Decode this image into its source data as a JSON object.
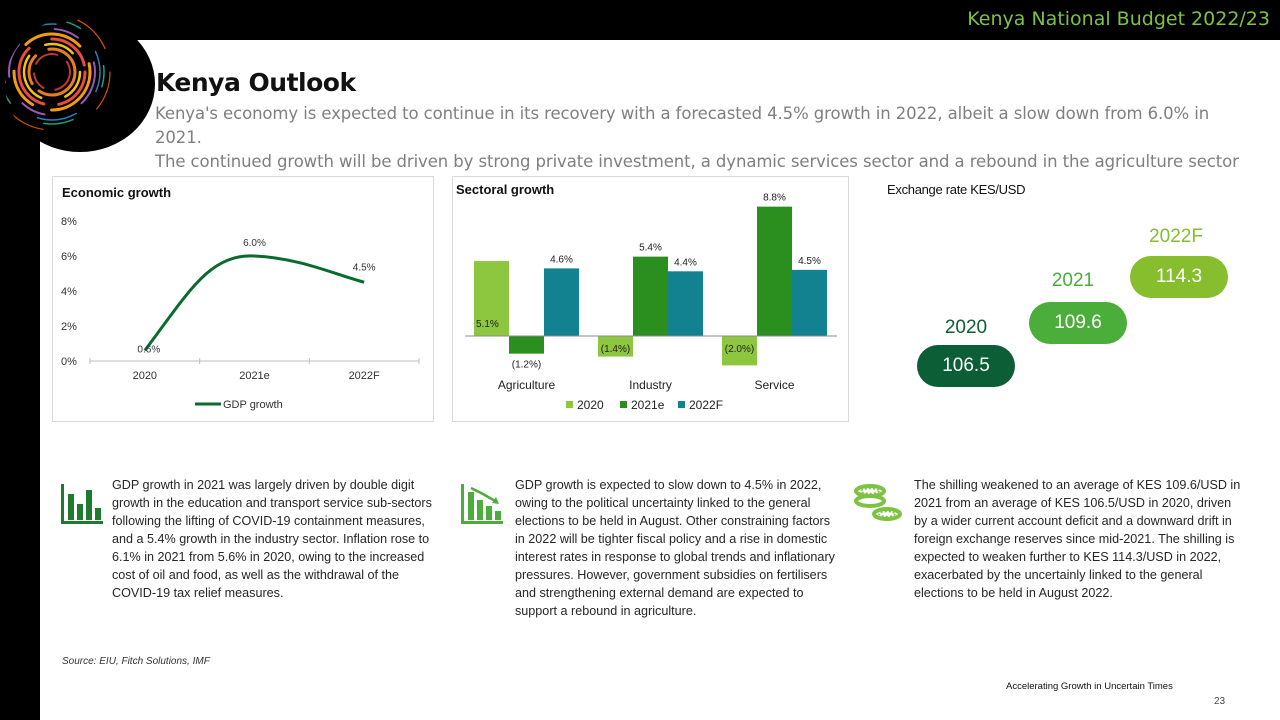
{
  "header": {
    "doc_title": "Kenya National Budget 2022/23"
  },
  "page": {
    "title": "Kenya Outlook",
    "intro_line1": "Kenya's economy is expected to continue in its recovery with a forecasted 4.5% growth in 2022, albeit a slow down from 6.0% in 2021.",
    "intro_line2": "The continued growth will be driven by strong private investment, a dynamic services sector and a rebound in the agriculture sector"
  },
  "chart_data": [
    {
      "type": "line",
      "title": "Economic growth",
      "categories": [
        "2020",
        "2021e",
        "2022F"
      ],
      "series": [
        {
          "name": "GDP growth",
          "values": [
            0.6,
            6.0,
            4.5
          ],
          "labels": [
            "0.6%",
            "6.0%",
            "4.5%"
          ],
          "color": "#0b6b2e"
        }
      ],
      "yticks": [
        "0%",
        "2%",
        "4%",
        "6%",
        "8%"
      ],
      "ylim": [
        0,
        8
      ],
      "legend": "bottom"
    },
    {
      "type": "bar",
      "title": "Sectoral growth",
      "categories": [
        "Agriculture",
        "Industry",
        "Service"
      ],
      "series": [
        {
          "name": "2020",
          "values": [
            5.1,
            -1.4,
            -2.0
          ],
          "labels": [
            "5.1%",
            "(1.4%)",
            "(2.0%)"
          ],
          "color": "#8dc63f"
        },
        {
          "name": "2021e",
          "values": [
            -1.2,
            5.4,
            8.8
          ],
          "labels": [
            "(1.2%)",
            "5.4%",
            "8.8%"
          ],
          "color": "#2a8f1f"
        },
        {
          "name": "2022F",
          "values": [
            4.6,
            4.4,
            4.5
          ],
          "labels": [
            "4.6%",
            "4.4%",
            "4.5%"
          ],
          "color": "#128290"
        }
      ],
      "legend": "bottom"
    },
    {
      "type": "table",
      "title": "Exchange rate KES/USD",
      "categories": [
        "2020",
        "2021",
        "2022F"
      ],
      "values": [
        106.5,
        109.6,
        114.3
      ],
      "labels": [
        "106.5",
        "109.6",
        "114.3"
      ],
      "colors": [
        "#0b5e36",
        "#4cae3a",
        "#86be2e"
      ]
    }
  ],
  "notes": [
    {
      "icon": "bar-chart-icon",
      "text": "GDP growth in 2021 was largely driven by double digit growth in the education and transport service sub-sectors following the lifting of COVID-19 containment measures, and a 5.4% growth in the industry sector. Inflation rose to 6.1% in 2021 from 5.6% in 2020, owing to the increased cost of oil and food, as well as the withdrawal of the COVID-19 tax relief measures."
    },
    {
      "icon": "declining-chart-icon",
      "text": "GDP growth is expected to slow down to 4.5% in 2022, owing to the political uncertainty linked to the general elections to be held in August. Other constraining factors in 2022 will be tighter fiscal policy and a rise in domestic interest rates in response to global trends and inflationary pressures. However, government subsidies on fertilisers and strengthening external demand are expected to support a rebound in agriculture."
    },
    {
      "icon": "coins-icon",
      "text": "The shilling weakened to an average of KES 109.6/USD in 2021 from an average of KES 106.5/USD in 2020, driven by a wider current account deficit and a downward drift in foreign exchange reserves since mid-2021. The shilling is expected to weaken further to KES 114.3/USD in 2022, exacerbated by the uncertainly linked to the general elections to be held in August 2022."
    }
  ],
  "footer": {
    "source": "Source: EIU, Fitch Solutions, IMF",
    "tagline": "Accelerating Growth in Uncertain Times",
    "page_number": "23"
  },
  "colors": {
    "brand_green": "#7dc242",
    "dark_green": "#0b6b2e",
    "teal": "#128290"
  }
}
